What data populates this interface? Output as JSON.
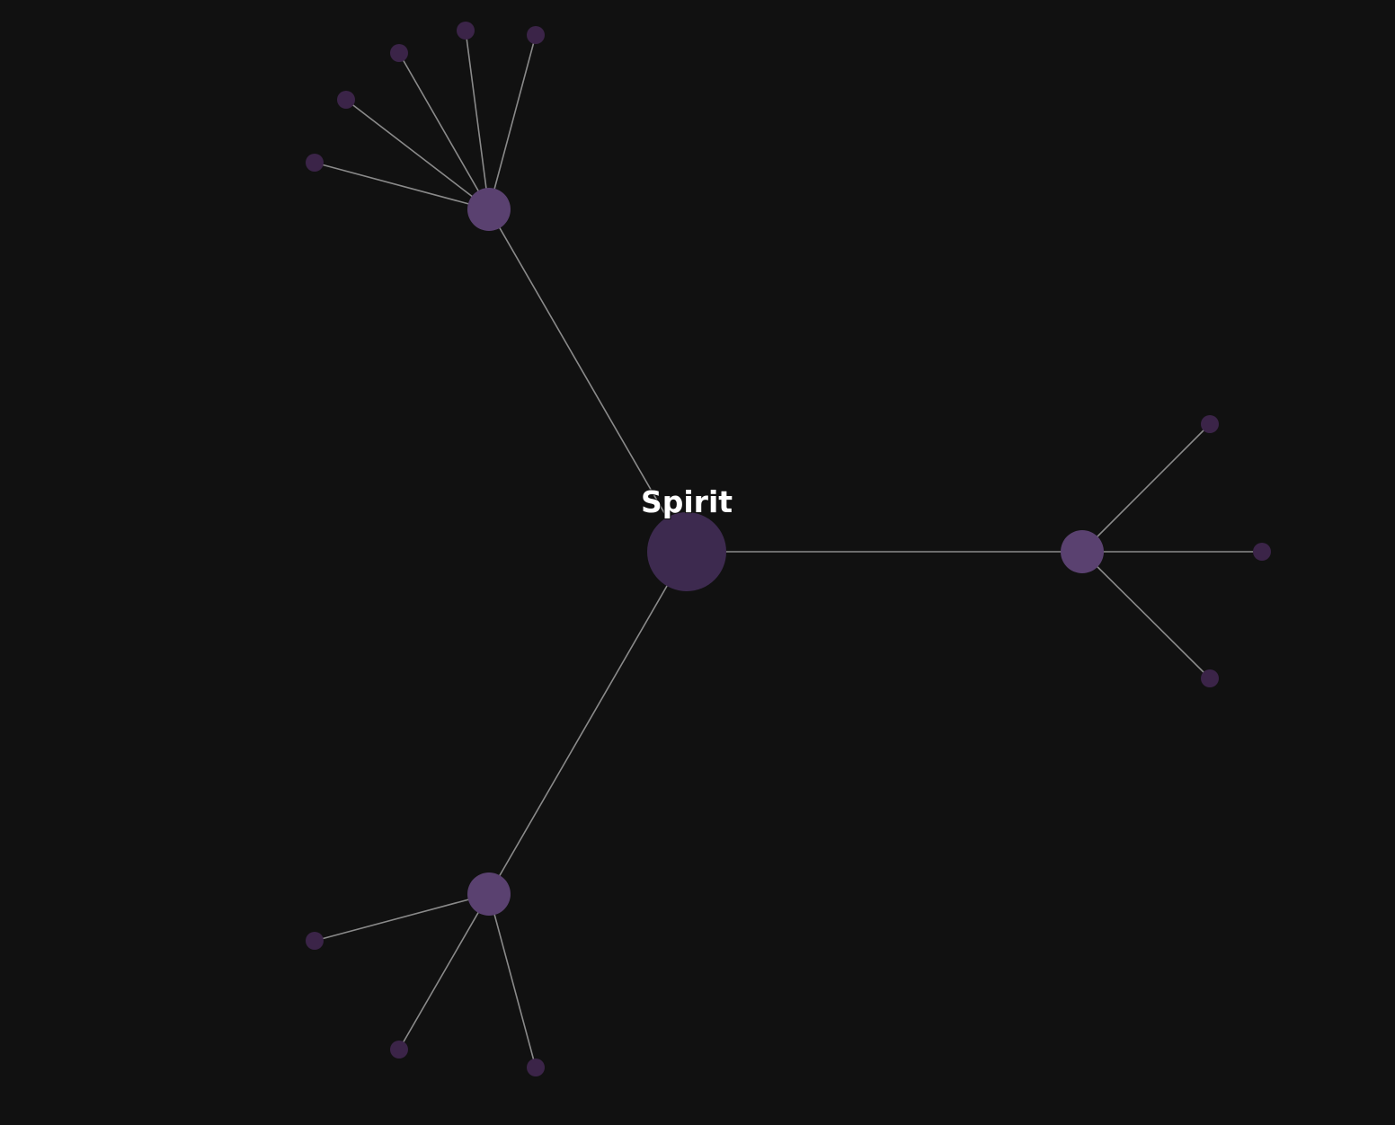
{
  "graph": {
    "root_label": "Spirit",
    "colors": {
      "background": "#111111",
      "edge": "#8a8a8a",
      "root": "#3d2a4f",
      "branch": "#5a4170",
      "leaf": "#3b2448",
      "label": "#ffffff"
    },
    "root": "spirit",
    "edges": [
      [
        "spirit",
        "branch-top"
      ],
      [
        "spirit",
        "branch-right"
      ],
      [
        "spirit",
        "branch-bottom"
      ],
      [
        "branch-top",
        "leaf-top-1"
      ],
      [
        "branch-top",
        "leaf-top-2"
      ],
      [
        "branch-top",
        "leaf-top-3"
      ],
      [
        "branch-top",
        "leaf-top-4"
      ],
      [
        "branch-top",
        "leaf-top-5"
      ],
      [
        "branch-right",
        "leaf-right-1"
      ],
      [
        "branch-right",
        "leaf-right-2"
      ],
      [
        "branch-right",
        "leaf-right-3"
      ],
      [
        "branch-bottom",
        "leaf-bottom-1"
      ],
      [
        "branch-bottom",
        "leaf-bottom-2"
      ],
      [
        "branch-bottom",
        "leaf-bottom-3"
      ]
    ]
  }
}
